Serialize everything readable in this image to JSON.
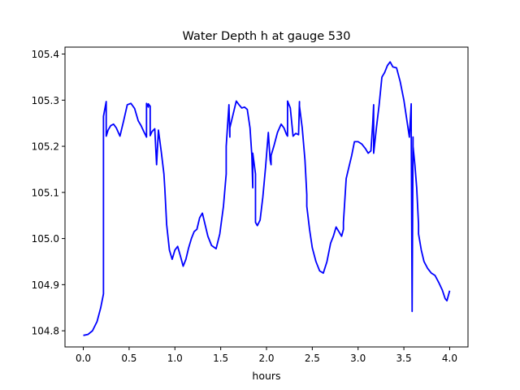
{
  "chart_data": {
    "type": "line",
    "title": "Water Depth h at gauge 530",
    "xlabel": "hours",
    "ylabel": "",
    "xlim": [
      -0.2,
      4.2
    ],
    "ylim": [
      104.765,
      105.415
    ],
    "xticks": [
      0.0,
      0.5,
      1.0,
      1.5,
      2.0,
      2.5,
      3.0,
      3.5,
      4.0
    ],
    "xtick_labels": [
      "0.0",
      "0.5",
      "1.0",
      "1.5",
      "2.0",
      "2.5",
      "3.0",
      "3.5",
      "4.0"
    ],
    "yticks": [
      104.8,
      104.9,
      105.0,
      105.1,
      105.2,
      105.3,
      105.4
    ],
    "ytick_labels": [
      "104.8",
      "104.9",
      "105.0",
      "105.1",
      "105.2",
      "105.3",
      "105.4"
    ],
    "grid": false,
    "legend": "none",
    "series": [
      {
        "color": "#0000ff",
        "x": [
          0.0,
          0.05,
          0.1,
          0.15,
          0.19,
          0.22,
          0.22,
          0.25,
          0.25,
          0.27,
          0.3,
          0.33,
          0.36,
          0.4,
          0.44,
          0.48,
          0.52,
          0.56,
          0.6,
          0.63,
          0.66,
          0.69,
          0.69,
          0.71,
          0.71,
          0.73,
          0.73,
          0.75,
          0.78,
          0.8,
          0.82,
          0.85,
          0.88,
          0.89,
          0.91,
          0.94,
          0.97,
          1.0,
          1.03,
          1.06,
          1.09,
          1.12,
          1.15,
          1.18,
          1.21,
          1.24,
          1.27,
          1.3,
          1.33,
          1.36,
          1.4,
          1.45,
          1.49,
          1.53,
          1.56,
          1.56,
          1.59,
          1.6,
          1.6,
          1.63,
          1.67,
          1.7,
          1.73,
          1.76,
          1.79,
          1.82,
          1.84,
          1.85,
          1.85,
          1.88,
          1.88,
          1.9,
          1.93,
          1.96,
          1.99,
          2.02,
          2.04,
          2.05,
          2.05,
          2.08,
          2.12,
          2.16,
          2.19,
          2.22,
          2.23,
          2.23,
          2.26,
          2.29,
          2.32,
          2.35,
          2.36,
          2.36,
          2.39,
          2.42,
          2.44,
          2.44,
          2.47,
          2.5,
          2.54,
          2.58,
          2.62,
          2.66,
          2.7,
          2.73,
          2.76,
          2.79,
          2.82,
          2.84,
          2.84,
          2.87,
          2.9,
          2.93,
          2.96,
          3.0,
          3.04,
          3.08,
          3.11,
          3.14,
          3.16,
          3.17,
          3.17,
          3.2,
          3.23,
          3.26,
          3.29,
          3.32,
          3.35,
          3.38,
          3.42,
          3.46,
          3.5,
          3.53,
          3.56,
          3.58,
          3.58,
          3.59,
          3.59,
          3.6,
          3.6,
          3.62,
          3.64,
          3.66,
          3.66,
          3.69,
          3.72,
          3.76,
          3.8,
          3.84,
          3.88,
          3.92,
          3.95,
          3.97,
          4.0
        ],
        "y": [
          104.79,
          104.792,
          104.8,
          104.82,
          104.85,
          104.88,
          105.265,
          105.297,
          105.222,
          105.235,
          105.245,
          105.248,
          105.24,
          105.222,
          105.255,
          105.29,
          105.293,
          105.282,
          105.255,
          105.245,
          105.232,
          105.22,
          105.293,
          105.285,
          105.292,
          105.287,
          105.223,
          105.232,
          105.238,
          105.16,
          105.235,
          105.19,
          105.14,
          105.108,
          105.03,
          104.975,
          104.955,
          104.975,
          104.983,
          104.962,
          104.94,
          104.955,
          104.98,
          105.0,
          105.015,
          105.02,
          105.045,
          105.055,
          105.03,
          105.005,
          104.985,
          104.978,
          105.01,
          105.07,
          105.14,
          105.2,
          105.29,
          105.22,
          105.24,
          105.265,
          105.298,
          105.29,
          105.283,
          105.285,
          105.28,
          105.24,
          105.18,
          105.11,
          105.185,
          105.14,
          105.035,
          105.028,
          105.04,
          105.09,
          105.155,
          105.23,
          105.17,
          105.16,
          105.18,
          105.2,
          105.23,
          105.248,
          105.24,
          105.225,
          105.222,
          105.298,
          105.283,
          105.222,
          105.228,
          105.225,
          105.297,
          105.287,
          105.24,
          105.17,
          105.095,
          105.07,
          105.02,
          104.98,
          104.95,
          104.93,
          104.925,
          104.95,
          104.99,
          105.005,
          105.025,
          105.015,
          105.005,
          105.02,
          105.035,
          105.13,
          105.155,
          105.18,
          105.21,
          105.21,
          105.205,
          105.195,
          105.185,
          105.19,
          105.25,
          105.29,
          105.185,
          105.24,
          105.29,
          105.35,
          105.36,
          105.375,
          105.383,
          105.372,
          105.37,
          105.34,
          105.3,
          105.26,
          105.22,
          105.292,
          105.24,
          104.85,
          104.842,
          105.22,
          105.2,
          105.16,
          105.11,
          105.03,
          105.01,
          104.975,
          104.95,
          104.935,
          104.925,
          104.92,
          104.905,
          104.888,
          104.87,
          104.865,
          104.887
        ]
      }
    ]
  }
}
